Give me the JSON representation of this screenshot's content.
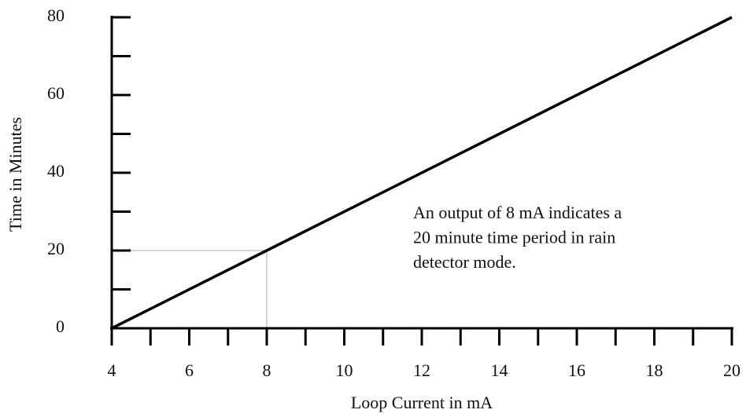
{
  "chart_data": {
    "type": "line",
    "xlabel": "Loop Current in mA",
    "ylabel": "Time in Minutes",
    "x": [
      4,
      20
    ],
    "series": [
      {
        "color": "#000000",
        "values": [
          0,
          80
        ]
      }
    ],
    "xlim": [
      4,
      20
    ],
    "ylim": [
      0,
      80
    ],
    "xticks": [
      4,
      6,
      8,
      10,
      12,
      14,
      16,
      18,
      20
    ],
    "xticks_minor": [
      5,
      7,
      9,
      11,
      13,
      15,
      17,
      19
    ],
    "yticks": [
      0,
      20,
      40,
      60,
      80
    ],
    "yticks_minor": [
      10,
      30,
      50,
      70
    ],
    "reference": {
      "x": 8,
      "y": 20,
      "color": "#aaaaaa"
    },
    "annotation": [
      "An output of 8 mA indicates a",
      "20 minute time period in rain",
      "detector mode."
    ]
  }
}
